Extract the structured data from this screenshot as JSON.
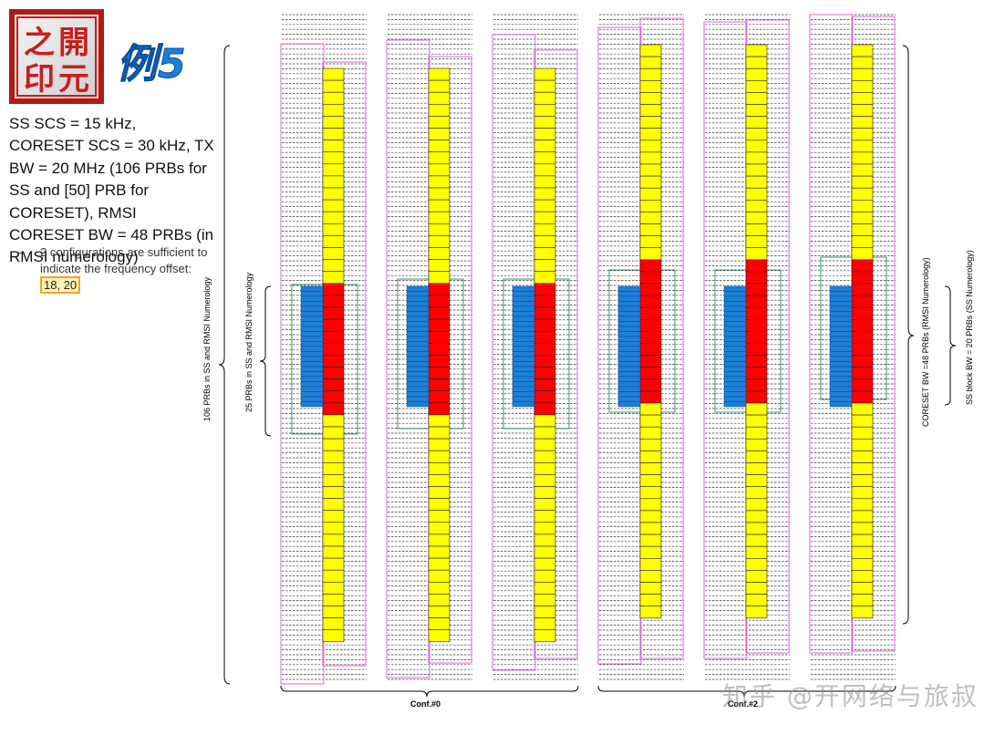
{
  "logo": {
    "chars": [
      "之",
      "開",
      "印",
      "元"
    ],
    "color": "#c81e1e"
  },
  "example_title": "例5",
  "description": "SS SCS = 15 kHz, CORESET SCS = 30 kHz, TX BW = 20 MHz (106 PRBs for SS and [50] PRB for CORESET), RMSI CORESET BW = 48 PRBs (in RMSI numerology)",
  "bullet": {
    "dash": "–",
    "text": "2 configurations are sufficient to indicate the frequency offset:",
    "highlight": "18, 20"
  },
  "diagram": {
    "columns_per_group": 3,
    "groups": [
      {
        "label": "Conf.#0",
        "coreset_prb_offset": 18
      },
      {
        "label": "Conf.#2",
        "coreset_prb_offset": 20
      }
    ],
    "total_prbs_label": "106 PRBs in SS and RMSI Numerology",
    "ss_prbs_label": "25 PRBs in SS and RMSI Numerology",
    "coreset_label": "CORESET BW =48 PRBs (RMSI Numerology)",
    "ssblock_label": "SS block BW = 20 PRBs (SS Numerology)",
    "colors": {
      "coreset": "#ffff00",
      "overlap": "#ff0000",
      "ssblock": "#1e7fd6",
      "outline": "#dd66dd",
      "green": "#3a9a6a"
    }
  },
  "watermark": "知乎 @开网络与旅叔"
}
